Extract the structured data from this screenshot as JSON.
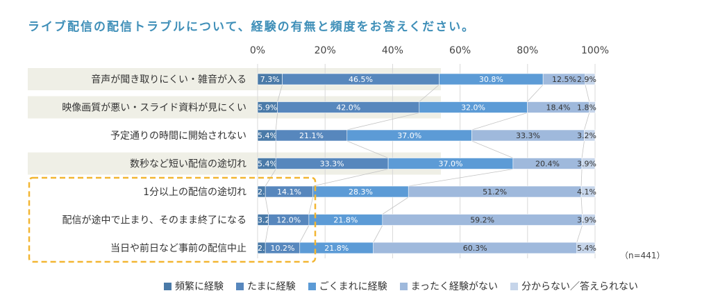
{
  "title": "ライブ配信の配信トラブルについて、経験の有無と頻度をお答えください。",
  "note": "（n=441）",
  "chart_data": {
    "type": "bar",
    "orientation": "horizontal",
    "stacked": true,
    "percent": true,
    "xlim": [
      0,
      100
    ],
    "xticks": [
      "0%",
      "20%",
      "40%",
      "60%",
      "80%",
      "100%"
    ],
    "categories": [
      "音声が聞き取りにくい・雑音が入る",
      "映像画質が悪い・スライド資料が見にくい",
      "予定通りの時間に開始されない",
      "数秒など短い配信の途切れ",
      "1分以上の配信の途切れ",
      "配信が途中で止まり、そのまま終了になる",
      "当日や前日など事前の配信中止"
    ],
    "series": [
      {
        "name": "頻繁に経験",
        "color": "#4a7aa8",
        "values": [
          7.3,
          5.9,
          5.4,
          5.4,
          2.3,
          3.2,
          2.3
        ]
      },
      {
        "name": "たまに経験",
        "color": "#5787bd",
        "values": [
          46.5,
          42.0,
          21.1,
          33.3,
          14.1,
          12.0,
          10.2
        ]
      },
      {
        "name": "ごくまれに経験",
        "color": "#5c9bd6",
        "values": [
          30.8,
          32.0,
          37.0,
          37.0,
          28.3,
          21.8,
          21.8
        ]
      },
      {
        "name": "まったく経験がない",
        "color": "#9fb9dc",
        "values": [
          12.5,
          18.4,
          33.3,
          20.4,
          51.2,
          59.2,
          60.3
        ]
      },
      {
        "name": "分からない／答えられない",
        "color": "#c6d5ea",
        "values": [
          2.9,
          1.8,
          3.2,
          3.9,
          4.1,
          3.9,
          5.4
        ]
      }
    ],
    "highlight_rows": [
      4,
      5,
      6
    ],
    "banded_rows": [
      0,
      1,
      3
    ]
  }
}
